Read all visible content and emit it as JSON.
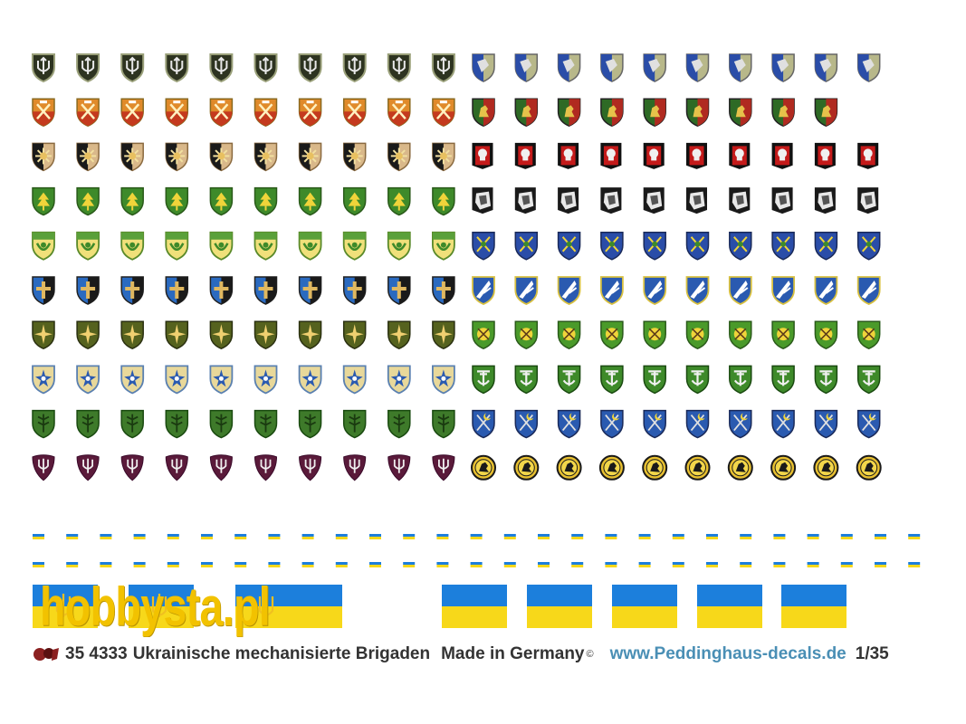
{
  "sheet": {
    "catalog_number": "35 4333",
    "title": "Ukrainische mechanisierte Brigaden",
    "origin": "Made in Germany",
    "copyright_mark": "©",
    "website": "www.Peddinghaus-decals.de",
    "scale": "1/35",
    "manufacturer_logo": "peddinghaus-logo"
  },
  "watermark": {
    "text": "hobbysta.pl",
    "icon": "hobbysta-bracket-icon",
    "color": "#f2c200"
  },
  "insignia_rows": [
    {
      "left": {
        "design": "trident-black",
        "count": 10
      },
      "right": {
        "design": "blue-wing-khaki",
        "count": 10
      }
    },
    {
      "left": {
        "design": "orange-axes-red",
        "count": 10
      },
      "right": {
        "design": "lion-green-red",
        "count": 9
      }
    },
    {
      "left": {
        "design": "sun-tan",
        "count": 10
      },
      "right": {
        "design": "skull-black-red",
        "count": 10
      }
    },
    {
      "left": {
        "design": "tree-green",
        "count": 10
      },
      "right": {
        "design": "wolf-black-white",
        "count": 10
      }
    },
    {
      "left": {
        "design": "wreath-yellow-green",
        "count": 10
      },
      "right": {
        "design": "swords-blue",
        "count": 10
      }
    },
    {
      "left": {
        "design": "cross-blue-black",
        "count": 10
      },
      "right": {
        "design": "wing-blue-white",
        "count": 10
      }
    },
    {
      "left": {
        "design": "compass-olive",
        "count": 10
      },
      "right": {
        "design": "star-green-yellow",
        "count": 10
      }
    },
    {
      "left": {
        "design": "star-blue-tan",
        "count": 10
      },
      "right": {
        "design": "anchor-green",
        "count": 10
      }
    },
    {
      "left": {
        "design": "plant-green",
        "count": 10
      },
      "right": {
        "design": "crescent-blue",
        "count": 10
      }
    },
    {
      "left": {
        "design": "trident-drop-purple",
        "count": 10
      },
      "right": {
        "design": "rider-gold-round",
        "count": 10
      }
    }
  ],
  "flag_strips": {
    "count_per_row": 27,
    "rows": 2
  },
  "flags": [
    {
      "design": "flag-trident"
    },
    {
      "design": "flag-trident"
    },
    {
      "design": "flag-trident"
    },
    {
      "design": "flag-plain"
    },
    {
      "design": "flag-plain"
    },
    {
      "design": "flag-plain"
    },
    {
      "design": "flag-plain"
    },
    {
      "design": "flag-plain"
    }
  ],
  "colors": {
    "flag_blue": "#1c7fdc",
    "flag_yellow": "#f7d81a",
    "footer_text": "#333333",
    "website": "#4a8fb5",
    "watermark_green": "#6fbf3f",
    "watermark_yellow": "#f2c200"
  }
}
